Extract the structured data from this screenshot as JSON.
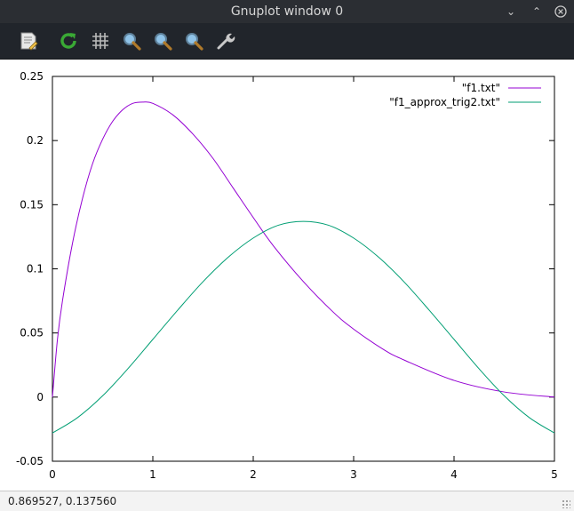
{
  "window": {
    "title": "Gnuplot window 0"
  },
  "toolbar": {
    "buttons": [
      {
        "icon": "copy-clipboard-icon"
      },
      {
        "icon": "replot-icon"
      },
      {
        "icon": "grid-icon"
      },
      {
        "icon": "previous-zoom-icon"
      },
      {
        "icon": "next-zoom-icon"
      },
      {
        "icon": "autoscale-icon"
      },
      {
        "icon": "settings-wrench-icon"
      }
    ]
  },
  "status": {
    "coordinates": "0.869527,  0.137560"
  },
  "colors": {
    "series1": "#9400d3",
    "series2": "#009e73",
    "titlebar": "#2b2e33",
    "toolbar": "#21252b"
  },
  "chart_data": {
    "type": "line",
    "title": "",
    "xlabel": "",
    "ylabel": "",
    "xlim": [
      0,
      5
    ],
    "ylim": [
      -0.05,
      0.25
    ],
    "grid": false,
    "legend": "top-right",
    "xticks": [
      "0",
      "1",
      "2",
      "3",
      "4",
      "5"
    ],
    "yticks": [
      "-0.05",
      "0",
      "0.05",
      "0.1",
      "0.15",
      "0.2",
      "0.25"
    ],
    "series": [
      {
        "name": "\"f1.txt\"",
        "x": [
          0,
          0.05,
          0.1,
          0.2,
          0.3,
          0.4,
          0.5,
          0.6,
          0.7,
          0.8,
          0.9,
          1.0,
          1.2,
          1.4,
          1.6,
          1.8,
          2.0,
          2.2,
          2.5,
          2.8,
          3.0,
          3.3,
          3.5,
          4.0,
          4.5,
          5.0
        ],
        "y": [
          0.0,
          0.045,
          0.075,
          0.12,
          0.155,
          0.182,
          0.201,
          0.215,
          0.224,
          0.229,
          0.23,
          0.229,
          0.22,
          0.205,
          0.186,
          0.163,
          0.14,
          0.118,
          0.09,
          0.066,
          0.053,
          0.037,
          0.029,
          0.013,
          0.004,
          0.0
        ]
      },
      {
        "name": "\"f1_approx_trig2.txt\"",
        "x": [
          0,
          0.25,
          0.5,
          0.75,
          1.0,
          1.25,
          1.5,
          1.75,
          2.0,
          2.25,
          2.5,
          2.75,
          3.0,
          3.25,
          3.5,
          3.75,
          4.0,
          4.25,
          4.5,
          4.75,
          5.0
        ],
        "y": [
          -0.028,
          -0.016,
          0.001,
          0.022,
          0.045,
          0.068,
          0.09,
          0.109,
          0.124,
          0.134,
          0.137,
          0.134,
          0.124,
          0.109,
          0.09,
          0.068,
          0.045,
          0.022,
          0.001,
          -0.016,
          -0.028
        ]
      }
    ]
  }
}
